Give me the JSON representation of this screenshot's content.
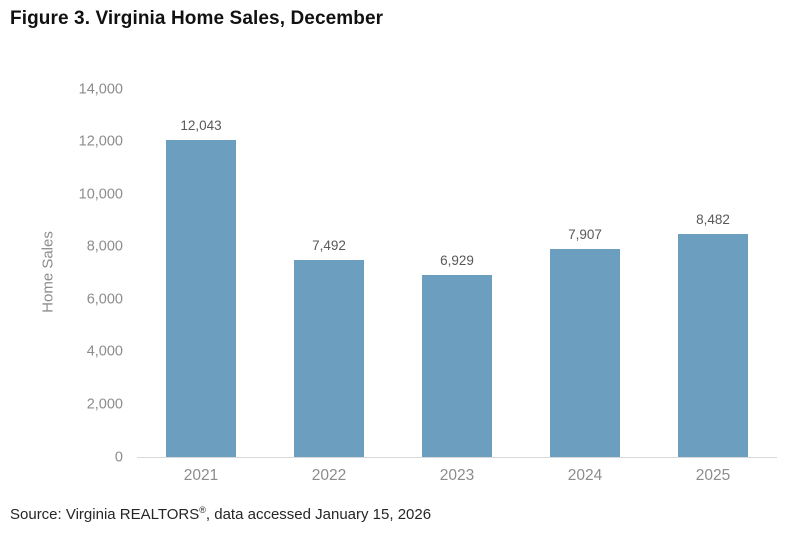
{
  "title": "Figure 3. Virginia Home Sales, December",
  "source": {
    "prefix": "Source: Virginia REALTORS",
    "reg": "®",
    "suffix": ", data accessed January 15, 2026"
  },
  "chart_data": {
    "type": "bar",
    "title": "Figure 3. Virginia Home Sales, December",
    "categories": [
      "2021",
      "2022",
      "2023",
      "2024",
      "2025"
    ],
    "values": [
      12043,
      7492,
      6929,
      7907,
      8482
    ],
    "value_labels": [
      "12,043",
      "7,492",
      "6,929",
      "7,907",
      "8,482"
    ],
    "xlabel": "",
    "ylabel": "Home Sales",
    "ylim": [
      0,
      14000
    ],
    "ytick_step": 2000,
    "yticks": [
      {
        "value": 0,
        "label": "0"
      },
      {
        "value": 2000,
        "label": "2,000"
      },
      {
        "value": 4000,
        "label": "4,000"
      },
      {
        "value": 6000,
        "label": "6,000"
      },
      {
        "value": 8000,
        "label": "8,000"
      },
      {
        "value": 10000,
        "label": "10,000"
      },
      {
        "value": 12000,
        "label": "12,000"
      },
      {
        "value": 14000,
        "label": "14,000"
      }
    ],
    "grid": false,
    "legend": null,
    "colors": {
      "bar": "#6C9EC0",
      "axis_line": "#D9D9D9",
      "tick_label": "#8C8C8C",
      "data_label": "#595959",
      "title": "#111111"
    }
  }
}
